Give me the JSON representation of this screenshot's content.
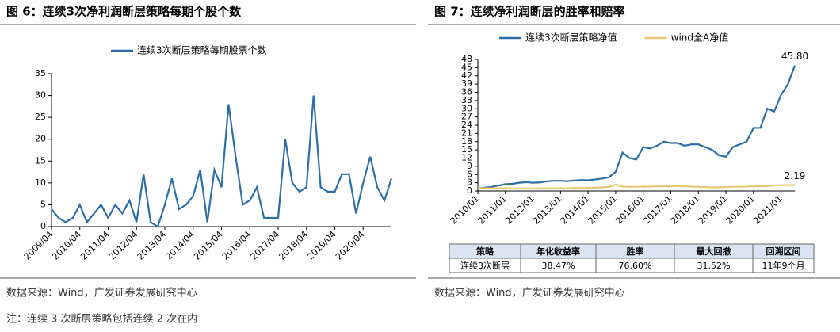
{
  "chart_data": [
    {
      "type": "line",
      "title": "图 6：连续3次净利润断层策略每期个股个数",
      "categories": [
        "2009/04",
        null,
        null,
        null,
        "2010/04",
        null,
        null,
        null,
        "2011/04",
        null,
        null,
        null,
        "2012/04",
        null,
        null,
        null,
        "2013/04",
        null,
        null,
        null,
        "2014/04",
        null,
        null,
        null,
        "2015/04",
        null,
        null,
        null,
        "2016/04",
        null,
        null,
        null,
        "2017/04",
        null,
        null,
        null,
        "2018/04",
        null,
        null,
        null,
        "2019/04",
        null,
        null,
        null,
        "2020/04",
        null,
        null,
        null,
        null
      ],
      "series": [
        {
          "name": "连续3次断层策略每期股票个数",
          "color": "#2e6ea6",
          "values": [
            4,
            2,
            1,
            2,
            5,
            1,
            3,
            5,
            2,
            5,
            3,
            6,
            1,
            12,
            1,
            0,
            5,
            11,
            4,
            5,
            7,
            13,
            1,
            13,
            9,
            28,
            16,
            5,
            6,
            9,
            2,
            2,
            2,
            20,
            10,
            8,
            9,
            30,
            9,
            8,
            8,
            12,
            12,
            3,
            10,
            16,
            9,
            6,
            11
          ]
        }
      ],
      "ylim": [
        0,
        35
      ],
      "yticks": [
        0,
        5,
        10,
        15,
        20,
        25,
        30,
        35
      ],
      "legend": "top"
    },
    {
      "type": "line",
      "title": "图 7：连续净利润断层的胜率和赔率",
      "categories": [
        "2010/01",
        null,
        null,
        null,
        "2011/01",
        null,
        null,
        null,
        "2012/01",
        null,
        null,
        null,
        "2013/01",
        null,
        null,
        null,
        "2014/01",
        null,
        null,
        null,
        "2015/01",
        null,
        null,
        null,
        "2016/01",
        null,
        null,
        null,
        "2017/01",
        null,
        null,
        null,
        "2018/01",
        null,
        null,
        null,
        "2019/01",
        null,
        null,
        null,
        "2020/01",
        null,
        null,
        null,
        "2021/01",
        null,
        null
      ],
      "series": [
        {
          "name": "连续3次断层策略净值",
          "color": "#2e6ea6",
          "values": [
            1,
            1.2,
            1.5,
            2,
            2.5,
            2.6,
            3,
            3.2,
            3.0,
            3.1,
            3.5,
            3.7,
            3.7,
            3.6,
            3.8,
            4,
            3.9,
            4.2,
            4.5,
            5,
            7,
            14,
            12,
            11.5,
            16,
            15.5,
            16.5,
            18,
            17.5,
            17.5,
            16.5,
            17,
            17,
            16,
            15,
            13,
            12.5,
            16,
            17,
            18,
            23,
            23,
            30,
            29,
            35,
            39,
            45.8
          ]
        },
        {
          "name": "wind全A净值",
          "color": "#e8c872",
          "values": [
            1,
            1,
            1,
            1,
            0.9,
            0.9,
            0.9,
            0.9,
            0.9,
            1,
            1,
            1,
            1,
            1,
            1.1,
            1.1,
            1.1,
            1.2,
            1.3,
            1.5,
            2.3,
            1.6,
            1.5,
            1.5,
            1.6,
            1.6,
            1.7,
            1.7,
            1.7,
            1.8,
            1.7,
            1.6,
            1.5,
            1.4,
            1.3,
            1.3,
            1.4,
            1.5,
            1.5,
            1.6,
            1.7,
            1.7,
            1.8,
            2.0,
            2.1,
            2.1,
            2.19
          ]
        }
      ],
      "annotations": [
        "45.80",
        "2.19"
      ],
      "ylim": [
        0,
        48
      ],
      "yticks": [
        0,
        3,
        6,
        9,
        12,
        15,
        18,
        21,
        24,
        27,
        30,
        33,
        36,
        39,
        42,
        45,
        48
      ],
      "legend": "top"
    }
  ],
  "table": {
    "header": [
      "策略",
      "年化收益率",
      "胜率",
      "最大回撤",
      "回溯区间"
    ],
    "rows": [
      [
        "连续3次断层",
        "38.47%",
        "76.60%",
        "31.52%",
        "11年9个月"
      ]
    ]
  },
  "notes": {
    "source_left": "数据来源：Wind，广发证券发展研究中心",
    "source_right": "数据来源：Wind，广发证券发展研究中心",
    "footnote": "注：连续 3 次断层策略包括连续 2 次在内"
  }
}
